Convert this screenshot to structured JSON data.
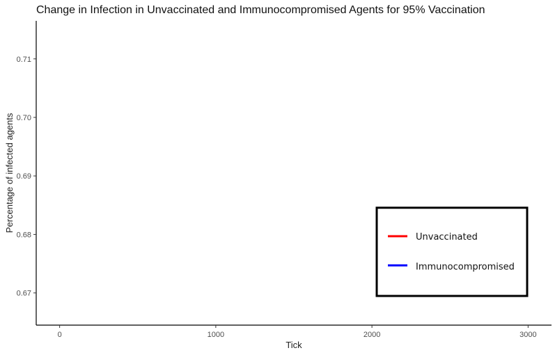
{
  "chart_data": {
    "type": "line",
    "title": "Change in Infection in Unvaccinated and Immunocompromised Agents for 95% Vaccination",
    "xlabel": "Tick",
    "ylabel": "Percentage of infected agents",
    "xlim": [
      -150,
      3150
    ],
    "ylim": [
      0.6645,
      0.7165
    ],
    "x_ticks": [
      0,
      1000,
      2000,
      3000
    ],
    "x_tick_labels": [
      "0",
      "1000",
      "2000",
      "3000"
    ],
    "y_ticks": [
      0.67,
      0.68,
      0.69,
      0.7,
      0.71
    ],
    "y_tick_labels": [
      "0.67",
      "0.68",
      "0.69",
      "0.70",
      "0.71"
    ],
    "grid": false,
    "legend_position": "bottom-right",
    "series": [
      {
        "name": "Unvaccinated",
        "color": "#ff0000",
        "values": []
      },
      {
        "name": "Immunocompromised",
        "color": "#0000ff",
        "values": []
      }
    ]
  }
}
